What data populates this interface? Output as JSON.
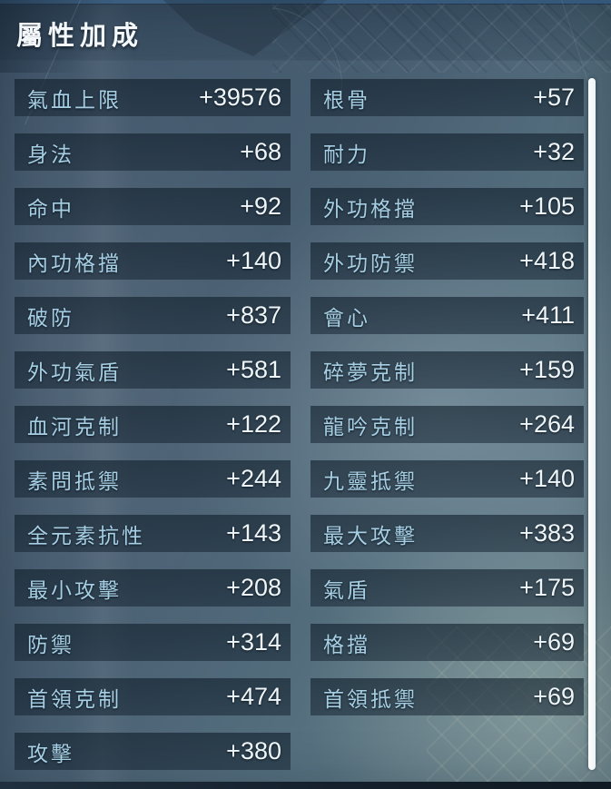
{
  "title": "屬性加成",
  "stats": {
    "left": [
      {
        "label": "氣血上限",
        "value": "+39576"
      },
      {
        "label": "身法",
        "value": "+68"
      },
      {
        "label": "命中",
        "value": "+92"
      },
      {
        "label": "內功格擋",
        "value": "+140"
      },
      {
        "label": "破防",
        "value": "+837"
      },
      {
        "label": "外功氣盾",
        "value": "+581"
      },
      {
        "label": "血河克制",
        "value": "+122"
      },
      {
        "label": "素問抵禦",
        "value": "+244"
      },
      {
        "label": "全元素抗性",
        "value": "+143"
      },
      {
        "label": "最小攻擊",
        "value": "+208"
      },
      {
        "label": "防禦",
        "value": "+314"
      },
      {
        "label": "首領克制",
        "value": "+474"
      },
      {
        "label": "攻擊",
        "value": "+380"
      }
    ],
    "right": [
      {
        "label": "根骨",
        "value": "+57"
      },
      {
        "label": "耐力",
        "value": "+32"
      },
      {
        "label": "外功格擋",
        "value": "+105"
      },
      {
        "label": "外功防禦",
        "value": "+418"
      },
      {
        "label": "會心",
        "value": "+411"
      },
      {
        "label": "碎夢克制",
        "value": "+159"
      },
      {
        "label": "龍吟克制",
        "value": "+264"
      },
      {
        "label": "九靈抵禦",
        "value": "+140"
      },
      {
        "label": "最大攻擊",
        "value": "+383"
      },
      {
        "label": "氣盾",
        "value": "+175"
      },
      {
        "label": "格擋",
        "value": "+69"
      },
      {
        "label": "首領抵禦",
        "value": "+69"
      }
    ]
  },
  "colors": {
    "label_text": "#a6cfe4",
    "value_text": "#eef6f9",
    "title_text": "#f4f8fa",
    "row_panel": "rgba(16,30,44,0.56)",
    "background_base": "#4a6073",
    "scrollbar": "#f2f8fa"
  }
}
